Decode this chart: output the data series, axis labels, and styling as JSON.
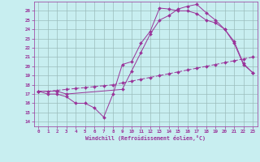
{
  "xlabel": "Windchill (Refroidissement éolien,°C)",
  "bg_color": "#c8eef0",
  "grid_color": "#9bbcbc",
  "line_color": "#993399",
  "xlim": [
    -0.5,
    23.5
  ],
  "ylim": [
    13.5,
    27
  ],
  "yticks": [
    14,
    15,
    16,
    17,
    18,
    19,
    20,
    21,
    22,
    23,
    24,
    25,
    26
  ],
  "xticks": [
    0,
    1,
    2,
    3,
    4,
    5,
    6,
    7,
    8,
    9,
    10,
    11,
    12,
    13,
    14,
    15,
    16,
    17,
    18,
    19,
    20,
    21,
    22,
    23
  ],
  "line1_x": [
    0,
    1,
    2,
    3,
    4,
    5,
    6,
    7,
    8,
    9,
    10,
    11,
    12,
    13,
    14,
    15,
    16,
    17,
    18,
    19,
    20,
    21,
    22,
    23
  ],
  "line1_y": [
    17.3,
    17.0,
    17.0,
    16.7,
    16.0,
    16.0,
    15.5,
    14.5,
    17.0,
    20.2,
    20.5,
    22.5,
    23.8,
    26.3,
    26.2,
    26.0,
    26.0,
    25.7,
    25.0,
    24.7,
    24.0,
    22.7,
    20.3,
    19.3
  ],
  "line2_x": [
    0,
    1,
    2,
    3,
    4,
    5,
    6,
    7,
    8,
    9,
    10,
    11,
    12,
    13,
    14,
    15,
    16,
    17,
    18,
    19,
    20,
    21,
    22,
    23
  ],
  "line2_y": [
    17.3,
    17.3,
    17.4,
    17.5,
    17.6,
    17.7,
    17.8,
    17.9,
    18.0,
    18.2,
    18.4,
    18.6,
    18.8,
    19.0,
    19.2,
    19.4,
    19.6,
    19.8,
    20.0,
    20.2,
    20.4,
    20.6,
    20.8,
    21.0
  ],
  "line3_x": [
    0,
    2,
    3,
    9,
    10,
    11,
    12,
    13,
    14,
    15,
    16,
    17,
    18,
    19,
    20,
    21,
    22,
    23
  ],
  "line3_y": [
    17.3,
    17.3,
    17.0,
    17.5,
    19.5,
    21.5,
    23.5,
    25.0,
    25.5,
    26.2,
    26.5,
    26.7,
    25.8,
    25.0,
    24.0,
    22.5,
    20.2,
    19.3
  ]
}
